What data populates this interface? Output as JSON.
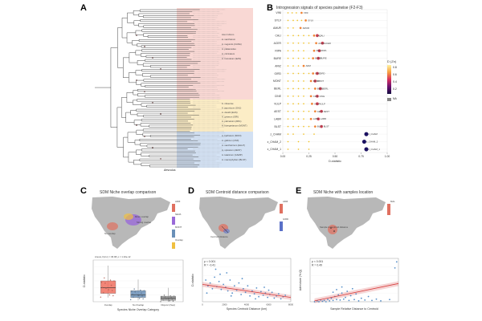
{
  "panels": {
    "a": {
      "label": "A"
    },
    "b": {
      "label": "B",
      "title": "Introgression signals of species pairwise (F2-F3)"
    },
    "c": {
      "label": "C",
      "title": "SDM Niche overlap comparison"
    },
    "d": {
      "label": "D",
      "title": "SDM Centroid distance comparison"
    },
    "e": {
      "label": "E",
      "title": "SDM Niche with samples location"
    }
  },
  "tree": {
    "clades": [
      {
        "name": "Acer rubrum",
        "color": "#e05a4f"
      },
      {
        "name": "A. saccharum",
        "color": "#e05a4f"
      },
      {
        "name": "A. negundo (CANA)",
        "color": "#e05a4f"
      },
      {
        "name": "A. platanoides",
        "color": "#e05a4f"
      },
      {
        "name": "A. circinatum",
        "color": "#e05a4f"
      },
      {
        "name": "A. truncatum (EAS)",
        "color": "#e05a4f"
      },
      {
        "name": "A. nikoense",
        "color": "#f0a030"
      },
      {
        "name": "A. japonicum (GAJ)",
        "color": "#f0a030"
      },
      {
        "name": "A. davidii (EAS)",
        "color": "#f0a030"
      },
      {
        "name": "A. griseum (GRI)",
        "color": "#f0a030"
      },
      {
        "name": "A. palmatum (ARG)",
        "color": "#f0a030"
      },
      {
        "name": "A. buergerianum (MONT)",
        "color": "#f0a030"
      },
      {
        "name": "A. barbatum (MON)",
        "color": "#2a6cc0"
      },
      {
        "name": "A. glabrum (CMI)",
        "color": "#2a6cc0"
      },
      {
        "name": "A. saccharinum (ELLP)",
        "color": "#2a6cc0"
      },
      {
        "name": "A. spicatum (AEST)",
        "color": "#2a6cc0"
      },
      {
        "name": "A. tataricum (CAMP)",
        "color": "#2a6cc0"
      },
      {
        "name": "A. macrophyllum (BLST)",
        "color": "#2a6cc0"
      }
    ],
    "outgroup": "Aesculus"
  },
  "heat_legend": {
    "title": "D (Zn)",
    "ticks": [
      "0.8",
      "0.6",
      "0.4",
      "0.2"
    ],
    "na_label": "NA"
  },
  "chart_data": [
    {
      "panel": "B",
      "type": "scatter",
      "title": "Introgression signals of species pairwise (F2-F3)",
      "xlabel": "D-statistic",
      "xlim": [
        0,
        1.0
      ],
      "xticks": [
        "0.00",
        "0.25",
        "0.50",
        "0.75",
        "1.00"
      ],
      "rows": [
        "VINI",
        "SYLV",
        "AMUR",
        "CALI",
        "ACER",
        "RIPA",
        "BURE",
        "ARIZ",
        "GIRD",
        "MONT",
        "BERL",
        "CINE",
        "VULP",
        "AEST",
        "LABR",
        "BLST",
        "z_CHAM",
        "z_CHAM_2",
        "z_CHAM_1"
      ],
      "series": [
        {
          "name": "yellow",
          "color": "#f0c020",
          "points": [
            [
              0.05,
              0
            ],
            [
              0.09,
              0
            ],
            [
              0.13,
              0
            ],
            [
              0.05,
              1
            ],
            [
              0.1,
              1
            ],
            [
              0.14,
              1
            ],
            [
              0.18,
              1
            ],
            [
              0.05,
              2
            ],
            [
              0.1,
              2
            ],
            [
              0.05,
              3
            ],
            [
              0.1,
              3
            ],
            [
              0.15,
              3
            ],
            [
              0.2,
              3
            ],
            [
              0.25,
              3
            ],
            [
              0.05,
              4
            ],
            [
              0.1,
              4
            ],
            [
              0.15,
              4
            ],
            [
              0.2,
              4
            ],
            [
              0.25,
              4
            ],
            [
              0.05,
              5
            ],
            [
              0.1,
              5
            ],
            [
              0.15,
              5
            ],
            [
              0.2,
              5
            ],
            [
              0.05,
              6
            ],
            [
              0.1,
              6
            ],
            [
              0.15,
              6
            ],
            [
              0.2,
              6
            ],
            [
              0.25,
              6
            ],
            [
              0.05,
              7
            ],
            [
              0.1,
              7
            ],
            [
              0.15,
              7
            ],
            [
              0.05,
              8
            ],
            [
              0.1,
              8
            ],
            [
              0.15,
              8
            ],
            [
              0.2,
              8
            ],
            [
              0.25,
              8
            ],
            [
              0.05,
              9
            ],
            [
              0.1,
              9
            ],
            [
              0.15,
              9
            ],
            [
              0.2,
              9
            ],
            [
              0.05,
              10
            ],
            [
              0.1,
              10
            ],
            [
              0.15,
              10
            ],
            [
              0.2,
              10
            ],
            [
              0.25,
              10
            ],
            [
              0.05,
              11
            ],
            [
              0.1,
              11
            ],
            [
              0.15,
              11
            ],
            [
              0.2,
              11
            ],
            [
              0.05,
              12
            ],
            [
              0.1,
              12
            ],
            [
              0.15,
              12
            ],
            [
              0.2,
              12
            ],
            [
              0.05,
              13
            ],
            [
              0.1,
              13
            ],
            [
              0.15,
              13
            ],
            [
              0.2,
              13
            ],
            [
              0.25,
              13
            ],
            [
              0.05,
              14
            ],
            [
              0.1,
              14
            ],
            [
              0.15,
              14
            ],
            [
              0.2,
              14
            ],
            [
              0.05,
              15
            ],
            [
              0.1,
              15
            ],
            [
              0.15,
              15
            ],
            [
              0.2,
              15
            ],
            [
              0.25,
              15
            ],
            [
              0.05,
              16
            ],
            [
              0.1,
              16
            ],
            [
              0.2,
              16
            ],
            [
              0.3,
              16
            ],
            [
              0.05,
              17
            ],
            [
              0.15,
              17
            ],
            [
              0.25,
              17
            ],
            [
              0.05,
              18
            ],
            [
              0.15,
              18
            ],
            [
              0.25,
              18
            ]
          ]
        },
        {
          "name": "orange",
          "color": "#f08030",
          "points": [
            [
              0.18,
              0
            ],
            [
              0.22,
              1
            ],
            [
              0.17,
              2
            ],
            [
              0.3,
              3
            ],
            [
              0.32,
              4
            ],
            [
              0.3,
              5
            ],
            [
              0.29,
              6
            ],
            [
              0.2,
              7
            ],
            [
              0.29,
              8
            ],
            [
              0.27,
              9
            ],
            [
              0.31,
              10
            ],
            [
              0.27,
              11
            ],
            [
              0.28,
              12
            ],
            [
              0.31,
              13
            ],
            [
              0.27,
              14
            ],
            [
              0.31,
              15
            ]
          ]
        },
        {
          "name": "red",
          "color": "#d83a50",
          "points": [
            [
              0.33,
              3
            ],
            [
              0.38,
              4
            ],
            [
              0.35,
              5
            ],
            [
              0.34,
              6
            ],
            [
              0.33,
              8
            ],
            [
              0.31,
              9
            ],
            [
              0.36,
              10
            ],
            [
              0.33,
              11
            ],
            [
              0.33,
              12
            ],
            [
              0.37,
              13
            ],
            [
              0.34,
              14
            ],
            [
              0.37,
              15
            ]
          ]
        },
        {
          "name": "navy",
          "color": "#1a1060",
          "points": [
            [
              0.8,
              16
            ],
            [
              0.78,
              17
            ],
            [
              0.8,
              18
            ]
          ]
        }
      ]
    },
    {
      "panel": "C",
      "type": "box",
      "legend_note": "Anova, F(2,n) = 36.98, p = 1.32e-12",
      "ylabel": "D-statistic",
      "xlabel": "Species Niche Overlap Category",
      "categories": [
        "Overlap",
        "No Overlap",
        "Disjunct (Sep)"
      ],
      "colors": [
        "#f07060",
        "#6a90b8",
        "#909090"
      ],
      "boxes": [
        {
          "min": 0.06,
          "q1": 0.12,
          "median": 0.2,
          "q3": 0.3,
          "max": 0.52
        },
        {
          "min": 0.02,
          "q1": 0.06,
          "median": 0.1,
          "q3": 0.16,
          "max": 0.32
        },
        {
          "min": 0.0,
          "q1": 0.02,
          "median": 0.05,
          "q3": 0.08,
          "max": 0.2
        }
      ],
      "ylim": [
        0,
        0.6
      ]
    },
    {
      "panel": "D",
      "type": "scatter",
      "stats": [
        "p < 0.001",
        "R = -0.41"
      ],
      "xlabel": "Species Centroid Distance (km)",
      "ylabel": "D-statistic",
      "xlim": [
        0,
        8000
      ],
      "ylim": [
        0,
        0.6
      ],
      "xticks": [
        "0",
        "2000",
        "4000",
        "6000",
        "8000"
      ],
      "fit": {
        "x": [
          0,
          8000
        ],
        "y": [
          0.24,
          0.06
        ]
      },
      "points": [
        [
          300,
          0.3
        ],
        [
          500,
          0.22
        ],
        [
          700,
          0.26
        ],
        [
          900,
          0.18
        ],
        [
          1100,
          0.34
        ],
        [
          1300,
          0.21
        ],
        [
          1500,
          0.28
        ],
        [
          1700,
          0.17
        ],
        [
          1900,
          0.24
        ],
        [
          2100,
          0.2
        ],
        [
          2300,
          0.15
        ],
        [
          2500,
          0.3
        ],
        [
          2700,
          0.12
        ],
        [
          2900,
          0.22
        ],
        [
          3100,
          0.16
        ],
        [
          3300,
          0.26
        ],
        [
          3500,
          0.1
        ],
        [
          3700,
          0.18
        ],
        [
          3900,
          0.13
        ],
        [
          4100,
          0.22
        ],
        [
          4300,
          0.08
        ],
        [
          4500,
          0.15
        ],
        [
          4700,
          0.11
        ],
        [
          4900,
          0.19
        ],
        [
          5100,
          0.07
        ],
        [
          5300,
          0.14
        ],
        [
          5500,
          0.09
        ],
        [
          5700,
          0.12
        ],
        [
          5900,
          0.06
        ],
        [
          6100,
          0.1
        ],
        [
          6300,
          0.13
        ],
        [
          6500,
          0.05
        ],
        [
          6700,
          0.08
        ],
        [
          6900,
          0.11
        ],
        [
          7100,
          0.04
        ],
        [
          7300,
          0.07
        ],
        [
          7500,
          0.09
        ],
        [
          1200,
          0.45
        ],
        [
          2200,
          0.4
        ],
        [
          400,
          0.12
        ],
        [
          3600,
          0.32
        ],
        [
          4800,
          0.04
        ],
        [
          6000,
          0.16
        ],
        [
          2600,
          0.08
        ],
        [
          1600,
          0.38
        ],
        [
          5600,
          0.2
        ]
      ]
    },
    {
      "panel": "E",
      "type": "scatter",
      "stats": [
        "p < 0.001",
        "R = 0.49"
      ],
      "xlabel": "Sample Relative Distance to Centroid",
      "ylabel": "Admixture (% Q)",
      "xlim": [
        0,
        1.0
      ],
      "ylim": [
        0,
        1.0
      ],
      "fit": {
        "x": [
          0.05,
          1.0
        ],
        "y": [
          0.02,
          0.42
        ]
      },
      "points": [
        [
          0.05,
          0.0
        ],
        [
          0.08,
          0.02
        ],
        [
          0.1,
          0.0
        ],
        [
          0.12,
          0.04
        ],
        [
          0.14,
          0.01
        ],
        [
          0.16,
          0.03
        ],
        [
          0.18,
          0.0
        ],
        [
          0.2,
          0.05
        ],
        [
          0.22,
          0.02
        ],
        [
          0.24,
          0.08
        ],
        [
          0.26,
          0.03
        ],
        [
          0.28,
          0.12
        ],
        [
          0.3,
          0.05
        ],
        [
          0.32,
          0.16
        ],
        [
          0.34,
          0.04
        ],
        [
          0.36,
          0.2
        ],
        [
          0.38,
          0.06
        ],
        [
          0.4,
          0.1
        ],
        [
          0.42,
          0.24
        ],
        [
          0.44,
          0.03
        ],
        [
          0.46,
          0.14
        ],
        [
          0.48,
          0.3
        ],
        [
          0.5,
          0.05
        ],
        [
          0.52,
          0.18
        ],
        [
          0.55,
          0.02
        ],
        [
          0.58,
          0.08
        ],
        [
          0.62,
          0.04
        ],
        [
          0.66,
          0.12
        ],
        [
          0.7,
          0.03
        ],
        [
          0.75,
          0.06
        ],
        [
          0.8,
          0.02
        ],
        [
          0.9,
          0.05
        ],
        [
          0.96,
          0.78
        ],
        [
          0.98,
          0.92
        ],
        [
          0.3,
          0.28
        ],
        [
          0.36,
          0.34
        ],
        [
          0.26,
          0.22
        ]
      ]
    }
  ],
  "maps": {
    "c": {
      "legend": [
        "ARIZ",
        "NEVA",
        "MONT",
        "Overlap"
      ],
      "labels": [
        "Minor overlap",
        "Strong overlap",
        "No overlap"
      ]
    },
    "d": {
      "legend": [
        "ARIZ",
        "GIRD"
      ],
      "labels": [
        "Centroid distance"
      ]
    },
    "e": {
      "legend": [
        "MAL"
      ],
      "labels": [
        "Sample to Centroid distance"
      ]
    }
  }
}
